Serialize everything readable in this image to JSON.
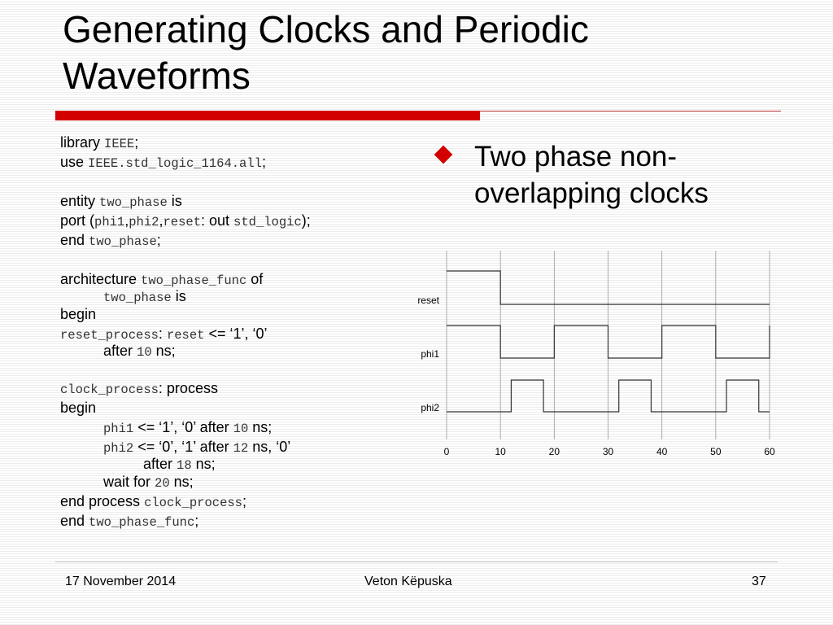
{
  "slide": {
    "title_line1": "Generating Clocks and Periodic",
    "title_line2": "Waveforms",
    "bullet_line1": "Two phase non-",
    "bullet_line2": "overlapping clocks"
  },
  "code": {
    "l1_kw": "library ",
    "l1_id": "IEEE",
    "l1_end": ";",
    "l2_kw": "use ",
    "l2_id": "IEEE.std_logic_1164.all",
    "l2_end": ";",
    "l3_kw": "entity ",
    "l3_id": "two_phase",
    "l3_end": " is",
    "l4_kw": "port (",
    "l4_id1": "phi1",
    "l4_c1": ",",
    "l4_id2": "phi2",
    "l4_c2": ",",
    "l4_id3": "reset",
    "l4_mid": ": out ",
    "l4_id4": "std_logic",
    "l4_end": ");",
    "l5_kw": "end ",
    "l5_id": "two_phase",
    "l5_end": ";",
    "l6_kw": "architecture ",
    "l6_id": "two_phase_func",
    "l6_end": " of",
    "l7_id": "two_phase",
    "l7_end": " is",
    "l8": "begin",
    "l9_id1": "reset_process",
    "l9_c": ": ",
    "l9_id2": "reset",
    "l9_op": " <= ‘1’, ‘0’",
    "l10_kw": "after ",
    "l10_num": "10",
    "l10_end": " ns;",
    "l11_id": "clock_process",
    "l11_end": ": process",
    "l12": "begin",
    "l13_id": "phi1",
    "l13_op": " <= ‘1’, ‘0’",
    "l13_kw": " after ",
    "l13_num": "10",
    "l13_end": " ns;",
    "l14_id": "phi2",
    "l14_op": " <= ‘0’, ‘1’",
    "l14_kw": " after ",
    "l14_num": "12",
    "l14_mid": " ns, ‘0’",
    "l15_kw": "after ",
    "l15_num": "18",
    "l15_end": " ns;",
    "l16_kw": "wait for ",
    "l16_num": "20",
    "l16_end": " ns;",
    "l17_kw": "end process ",
    "l17_id": "clock_process",
    "l17_end": ";",
    "l18_kw": "end ",
    "l18_id": "two_phase_func",
    "l18_end": ";"
  },
  "waveform": {
    "x_ticks": [
      "0",
      "10",
      "20",
      "30",
      "40",
      "50",
      "60"
    ],
    "x_range": [
      0,
      60
    ],
    "signals": [
      {
        "name": "reset",
        "transitions": [
          [
            0,
            1
          ],
          [
            10,
            0
          ]
        ]
      },
      {
        "name": "phi1",
        "transitions": [
          [
            0,
            1
          ],
          [
            10,
            0
          ],
          [
            20,
            1
          ],
          [
            30,
            0
          ],
          [
            40,
            1
          ],
          [
            50,
            0
          ],
          [
            60,
            1
          ]
        ]
      },
      {
        "name": "phi2",
        "transitions": [
          [
            0,
            0
          ],
          [
            12,
            1
          ],
          [
            18,
            0
          ],
          [
            32,
            1
          ],
          [
            38,
            0
          ],
          [
            52,
            1
          ],
          [
            58,
            0
          ]
        ]
      }
    ]
  },
  "footer": {
    "date": "17 November 2014",
    "author": "Veton Këpuska",
    "page": "37"
  }
}
